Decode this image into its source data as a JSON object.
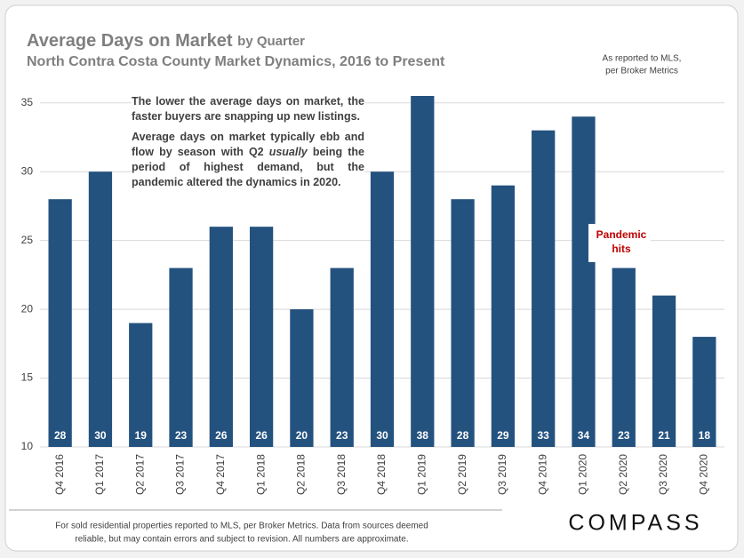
{
  "chart_data": {
    "type": "bar",
    "title": "Average Days on Market",
    "title_suffix": "by Quarter",
    "subtitle": "North Contra Costa County Market Dynamics, 2016 to Present",
    "source_note": [
      "As reported to MLS,",
      "per Broker Metrics"
    ],
    "annotation_1": "The lower the average days on market, the faster buyers are snapping up new listings.",
    "annotation_2": [
      "Average days on market typically ebb and flow by season with Q2 ",
      "usually",
      " being the period of highest demand, but the pandemic altered the dynamics in 2020."
    ],
    "event_label": [
      "Pandemic",
      "hits"
    ],
    "footer": [
      "For sold residential properties reported to MLS, per Broker Metrics. Data from sources deemed",
      "reliable, but may contain errors and subject to revision. All numbers are approximate."
    ],
    "logo": "COMPASS",
    "categories": [
      "Q4 2016",
      "Q1 2017",
      "Q2 2017",
      "Q3 2017",
      "Q4 2017",
      "Q1 2018",
      "Q2 2018",
      "Q3 2018",
      "Q4 2018",
      "Q1 2019",
      "Q2 2019",
      "Q3 2019",
      "Q4 2019",
      "Q1 2020",
      "Q2 2020",
      "Q3 2020",
      "Q4 2020"
    ],
    "values": [
      28,
      30,
      19,
      23,
      26,
      26,
      20,
      23,
      30,
      38,
      28,
      29,
      33,
      34,
      23,
      21,
      18
    ],
    "color": "#24527f",
    "ylim": [
      10,
      35.5
    ],
    "yticks": [
      10,
      15,
      20,
      25,
      30,
      35
    ],
    "grid": true
  }
}
